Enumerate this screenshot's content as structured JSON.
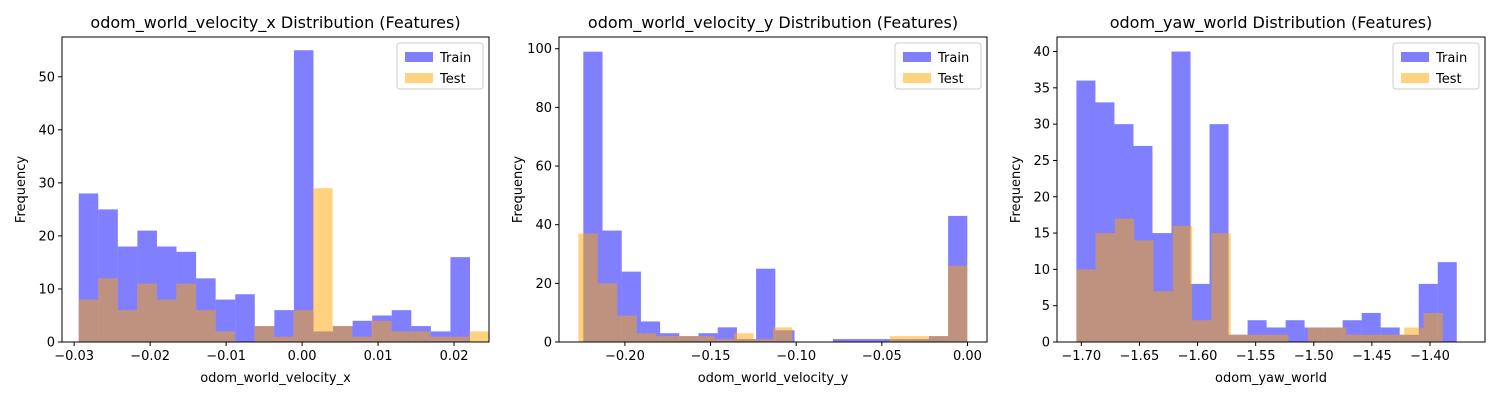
{
  "chart_data": [
    {
      "type": "bar",
      "title": "odom_world_velocity_x Distribution (Features)",
      "xlabel": "odom_world_velocity_x",
      "ylabel": "Frequency",
      "xlim": [
        -0.0316,
        0.0246
      ],
      "ylim": [
        0,
        57.5
      ],
      "xticks": [
        -0.03,
        -0.02,
        -0.01,
        0.0,
        0.01,
        0.02
      ],
      "xtick_labels": [
        "−0.03",
        "−0.02",
        "−0.01",
        "0.00",
        "0.01",
        "0.02"
      ],
      "yticks": [
        0,
        10,
        20,
        30,
        40,
        50
      ],
      "ytick_labels": [
        "0",
        "10",
        "20",
        "30",
        "40",
        "50"
      ],
      "legend": "top-right",
      "series": [
        {
          "name": "Train",
          "color": "#0000ff",
          "bin_start": -0.0294,
          "bin_width": 0.002575,
          "counts": [
            28,
            25,
            18,
            21,
            18,
            17,
            12,
            8,
            9,
            3,
            6,
            55,
            2,
            3,
            4,
            5,
            6,
            3,
            2,
            16
          ]
        },
        {
          "name": "Test",
          "color": "#ffa500",
          "bin_start": -0.0294,
          "bin_width": 0.00257,
          "counts": [
            8,
            12,
            6,
            11,
            8,
            11,
            6,
            2,
            0,
            3,
            1,
            6,
            29,
            3,
            1,
            4,
            2,
            2,
            1,
            1,
            2
          ]
        }
      ]
    },
    {
      "type": "bar",
      "title": "odom_world_velocity_y Distribution (Features)",
      "xlabel": "odom_world_velocity_y",
      "ylabel": "Frequency",
      "xlim": [
        -0.2385,
        0.0114
      ],
      "ylim": [
        0,
        104
      ],
      "xticks": [
        -0.2,
        -0.15,
        -0.1,
        -0.05,
        0.0
      ],
      "xtick_labels": [
        "−0.20",
        "−0.15",
        "−0.10",
        "−0.05",
        "0.00"
      ],
      "yticks": [
        0,
        20,
        40,
        60,
        80,
        100
      ],
      "ytick_labels": [
        "0",
        "20",
        "40",
        "60",
        "80",
        "100"
      ],
      "legend": "top-right",
      "series": [
        {
          "name": "Train",
          "color": "#0000ff",
          "bin_start": -0.2243,
          "bin_width": 0.01121,
          "counts": [
            99,
            38,
            24,
            7,
            3,
            2,
            3,
            5,
            1,
            25,
            4,
            0,
            0,
            1,
            1,
            1,
            1,
            1,
            2,
            43
          ]
        },
        {
          "name": "Test",
          "color": "#ffa500",
          "bin_start": -0.2272,
          "bin_width": 0.01136,
          "counts": [
            37,
            20,
            9,
            3,
            2,
            2,
            2,
            1,
            3,
            1,
            5,
            0,
            0,
            0,
            0,
            0,
            2,
            2,
            2,
            26
          ]
        }
      ]
    },
    {
      "type": "bar",
      "title": "odom_yaw_world Distribution (Features)",
      "xlabel": "odom_yaw_world",
      "ylabel": "Frequency",
      "xlim": [
        -1.7209,
        -1.3527
      ],
      "ylim": [
        0,
        42
      ],
      "xticks": [
        -1.7,
        -1.65,
        -1.6,
        -1.55,
        -1.5,
        -1.45,
        -1.4
      ],
      "xtick_labels": [
        "−1.70",
        "−1.65",
        "−1.60",
        "−1.55",
        "−1.50",
        "−1.45",
        "−1.40"
      ],
      "yticks": [
        0,
        5,
        10,
        15,
        20,
        25,
        30,
        35,
        40
      ],
      "ytick_labels": [
        "0",
        "5",
        "10",
        "15",
        "20",
        "25",
        "30",
        "35",
        "40"
      ],
      "legend": "top-right",
      "series": [
        {
          "name": "Train",
          "color": "#0000ff",
          "bin_start": -1.7042,
          "bin_width": 0.01636,
          "counts": [
            36,
            33,
            30,
            27,
            15,
            40,
            8,
            30,
            1,
            3,
            2,
            3,
            2,
            2,
            3,
            4,
            2,
            1,
            8,
            11
          ]
        },
        {
          "name": "Test",
          "color": "#ffa500",
          "bin_start": -1.7042,
          "bin_width": 0.01659,
          "counts": [
            10,
            15,
            17,
            14,
            7,
            16,
            3,
            15,
            1,
            1,
            1,
            0,
            2,
            2,
            1,
            1,
            1,
            2,
            4
          ]
        }
      ]
    }
  ]
}
